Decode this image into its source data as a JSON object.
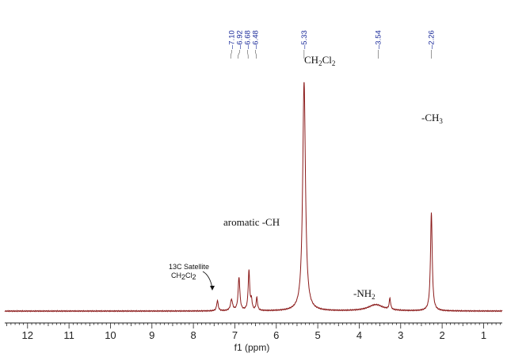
{
  "chart_data": {
    "type": "line",
    "xlabel": "f1 (ppm)",
    "x_reversed": true,
    "xlim": [
      12.55,
      0.55
    ],
    "xticks": [
      12,
      11,
      10,
      9,
      8,
      7,
      6,
      5,
      4,
      3,
      2,
      1
    ],
    "y_scale": "relative intensity (no axis shown)",
    "line_color": "#8b1a1a",
    "peak_picks": [
      {
        "ppm": 7.1,
        "label": "7.10"
      },
      {
        "ppm": 6.92,
        "label": "6.92"
      },
      {
        "ppm": 6.68,
        "label": "6.68"
      },
      {
        "ppm": 6.48,
        "label": "6.48"
      },
      {
        "ppm": 5.33,
        "label": "5.33"
      },
      {
        "ppm": 3.54,
        "label": "3.54"
      },
      {
        "ppm": 2.26,
        "label": "2.26"
      }
    ],
    "peaks": [
      {
        "ppm": 7.42,
        "height": 0.065,
        "width": 0.022
      },
      {
        "ppm": 7.08,
        "height": 0.07,
        "width": 0.03
      },
      {
        "ppm": 6.9,
        "height": 0.21,
        "width": 0.025
      },
      {
        "ppm": 6.66,
        "height": 0.25,
        "width": 0.022
      },
      {
        "ppm": 6.6,
        "height": 0.06,
        "width": 0.02
      },
      {
        "ppm": 6.47,
        "height": 0.08,
        "width": 0.02
      },
      {
        "ppm": 5.33,
        "height": 1.45,
        "width": 0.04
      },
      {
        "ppm": 3.6,
        "height": 0.04,
        "width": 0.22
      },
      {
        "ppm": 3.26,
        "height": 0.07,
        "width": 0.02
      },
      {
        "ppm": 2.26,
        "height": 0.62,
        "width": 0.025
      }
    ],
    "annotations": {
      "ch2cl2": {
        "base": "CH",
        "s1": "2",
        "mid": "Cl",
        "s2": "2"
      },
      "ch3": {
        "base": "-CH",
        "s1": "3"
      },
      "aromatic": "aromatic -CH",
      "nh2": {
        "base": "-NH",
        "s1": "2"
      },
      "satellite_line1": "13C Satellite",
      "satellite_line2": {
        "base": "CH",
        "s1": "2",
        "mid": "Cl",
        "s2": "2"
      }
    }
  }
}
